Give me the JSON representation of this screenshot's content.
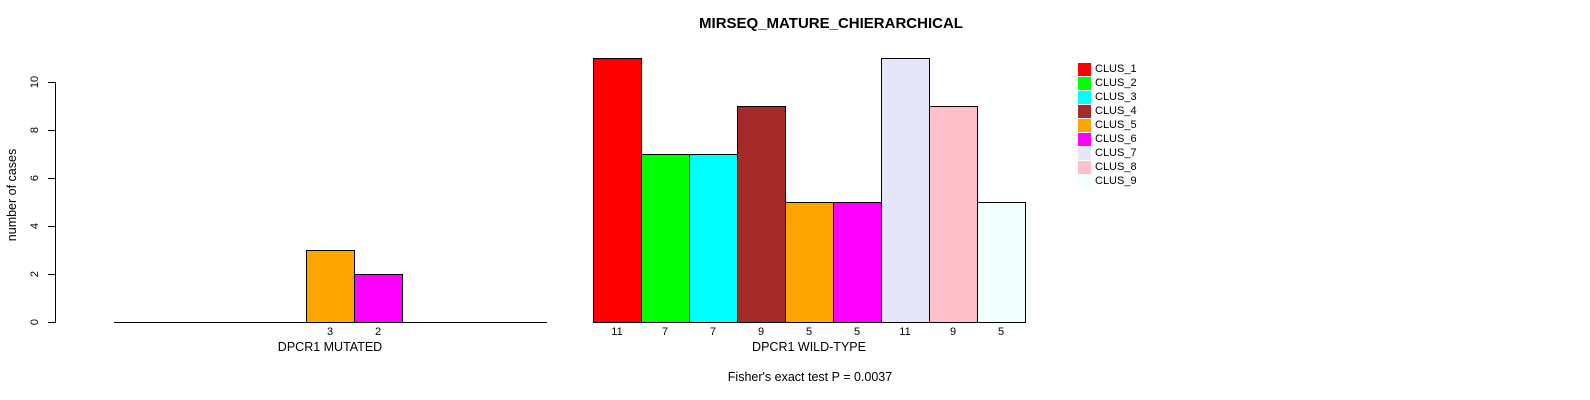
{
  "chart_data": {
    "type": "bar",
    "title": "MIRSEQ_MATURE_CHIERARCHICAL",
    "ylabel": "number of cases",
    "caption": "Fisher's exact test P = 0.0037",
    "ylim": [
      0,
      10
    ],
    "yticks": [
      0,
      2,
      4,
      6,
      8,
      10
    ],
    "grid": false,
    "legend_position": "right-outside",
    "clusters": [
      {
        "name": "CLUS_1",
        "color": "#FF0000"
      },
      {
        "name": "CLUS_2",
        "color": "#00FF00"
      },
      {
        "name": "CLUS_3",
        "color": "#00FFFF"
      },
      {
        "name": "CLUS_4",
        "color": "#A52A2A"
      },
      {
        "name": "CLUS_5",
        "color": "#FFA500"
      },
      {
        "name": "CLUS_6",
        "color": "#FF00FF"
      },
      {
        "name": "CLUS_7",
        "color": "#E6E6FA"
      },
      {
        "name": "CLUS_8",
        "color": "#FFC0CB"
      },
      {
        "name": "CLUS_9",
        "color": "#F0FFFF"
      }
    ],
    "groups": [
      {
        "label": "DPCR1 MUTATED",
        "values": [
          0,
          0,
          0,
          0,
          3,
          2,
          0,
          0,
          0
        ]
      },
      {
        "label": "DPCR1 WILD-TYPE",
        "values": [
          11,
          7,
          7,
          9,
          5,
          5,
          11,
          9,
          5
        ]
      }
    ]
  }
}
